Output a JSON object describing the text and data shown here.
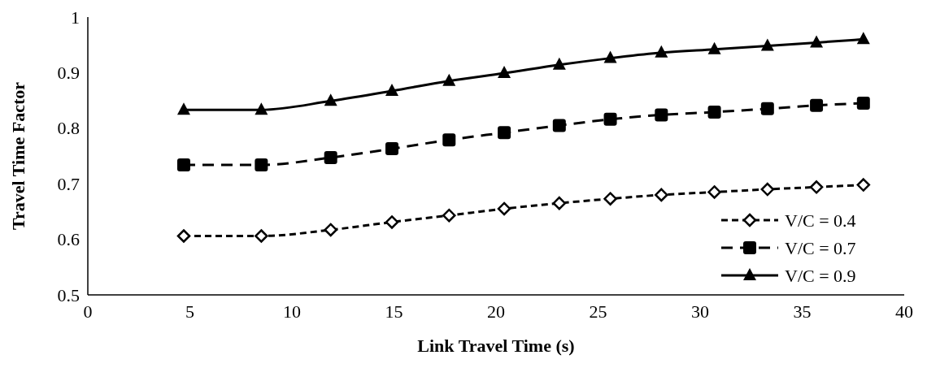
{
  "chart_data": {
    "type": "line",
    "xlabel": "Link Travel Time (s)",
    "ylabel": "Travel Time Factor",
    "x": [
      4.7,
      8.5,
      11.9,
      14.9,
      17.7,
      20.4,
      23.1,
      25.6,
      28.1,
      30.7,
      33.3,
      35.7,
      38.0
    ],
    "series": [
      {
        "name": "V/C = 0.4",
        "color": "#000000",
        "marker": "diamond",
        "line_style": "dotted",
        "values": [
          0.606,
          0.606,
          0.617,
          0.631,
          0.643,
          0.655,
          0.665,
          0.673,
          0.68,
          0.685,
          0.69,
          0.694,
          0.698
        ]
      },
      {
        "name": "V/C = 0.7",
        "color": "#000000",
        "marker": "square",
        "line_style": "dashed",
        "values": [
          0.734,
          0.734,
          0.747,
          0.763,
          0.779,
          0.792,
          0.805,
          0.816,
          0.824,
          0.829,
          0.835,
          0.841,
          0.845
        ]
      },
      {
        "name": "V/C = 0.9",
        "color": "#000000",
        "marker": "triangle",
        "line_style": "solid",
        "values": [
          0.833,
          0.833,
          0.849,
          0.867,
          0.885,
          0.899,
          0.914,
          0.926,
          0.936,
          0.942,
          0.948,
          0.954,
          0.96
        ]
      }
    ],
    "xlim": [
      0,
      40
    ],
    "xticks": [
      0,
      5,
      10,
      15,
      20,
      25,
      30,
      35,
      40
    ],
    "ylim": [
      0.5,
      1
    ],
    "yticks": [
      0.5,
      0.6,
      0.7,
      0.8,
      0.9,
      1
    ],
    "legend": "bottom right"
  }
}
